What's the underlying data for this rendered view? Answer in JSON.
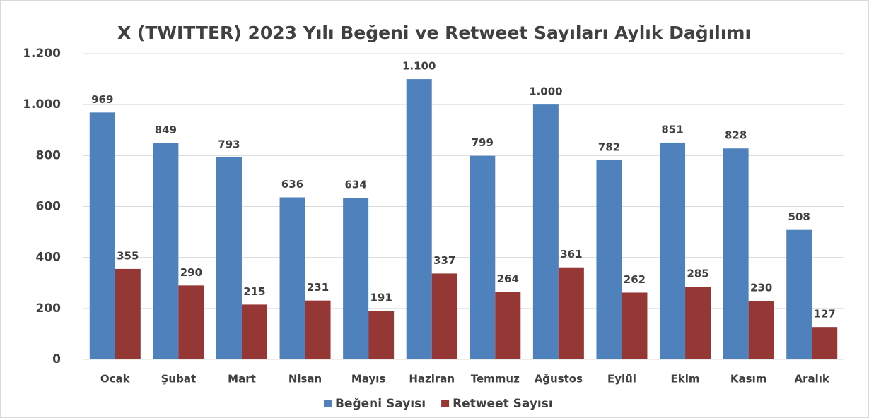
{
  "chart_data": {
    "type": "bar",
    "title": "X (TWITTER) 2023 Yılı Beğeni ve Retweet Sayıları Aylık Dağılımı",
    "categories": [
      "Ocak",
      "Şubat",
      "Mart",
      "Nisan",
      "Mayıs",
      "Haziran",
      "Temmuz",
      "Ağustos",
      "Eylül",
      "Ekim",
      "Kasım",
      "Aralık"
    ],
    "series": [
      {
        "name": "Beğeni Sayısı",
        "color": "#4f81bd",
        "values": [
          969,
          849,
          793,
          636,
          634,
          1100,
          799,
          1000,
          782,
          851,
          828,
          508
        ],
        "value_labels": [
          "969",
          "849",
          "793",
          "636",
          "634",
          "1.100",
          "799",
          "1.000",
          "782",
          "851",
          "828",
          "508"
        ]
      },
      {
        "name": "Retweet Sayısı",
        "color": "#953735",
        "values": [
          355,
          290,
          215,
          231,
          191,
          337,
          264,
          361,
          262,
          285,
          230,
          127
        ]
      }
    ],
    "ylim": [
      0,
      1200
    ],
    "yticks": [
      0,
      200,
      400,
      600,
      800,
      {
        "value": 1000,
        "label": "1.000"
      },
      {
        "value": 1200,
        "label": "1.200"
      }
    ],
    "grid": true,
    "legend": "bottom"
  }
}
